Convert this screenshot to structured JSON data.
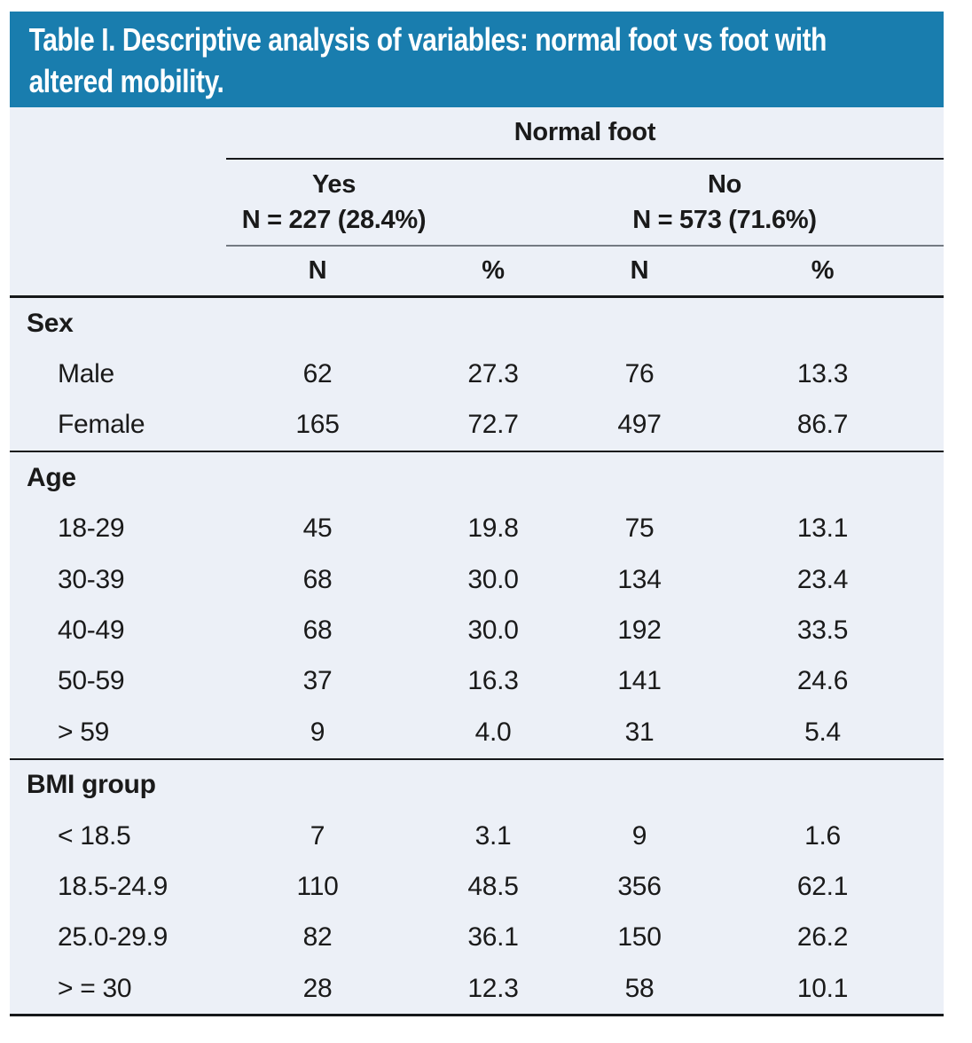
{
  "title": "Table I. Descriptive analysis of variables: normal foot vs foot with altered mobility.",
  "colors": {
    "banner": "#197dae",
    "table_bg": "#ecf0f7",
    "text": "#1a1a1a",
    "title_text": "#ffffff",
    "rule_dark": "#16181a",
    "rule_gray": "#747a82"
  },
  "table": {
    "group_header": "Normal foot",
    "columns": [
      {
        "label": "Yes",
        "sub": "N = 227 (28.4%)"
      },
      {
        "label": "No",
        "sub": "N = 573 (71.6%)"
      }
    ],
    "measure_headers": [
      "N",
      "%",
      "N",
      "%"
    ],
    "sections": [
      {
        "header": "Sex",
        "rows": [
          {
            "label": "Male",
            "values": [
              "62",
              "27.3",
              "76",
              "13.3"
            ]
          },
          {
            "label": "Female",
            "values": [
              "165",
              "72.7",
              "497",
              "86.7"
            ]
          }
        ]
      },
      {
        "header": "Age",
        "rows": [
          {
            "label": "18-29",
            "values": [
              "45",
              "19.8",
              "75",
              "13.1"
            ]
          },
          {
            "label": "30-39",
            "values": [
              "68",
              "30.0",
              "134",
              "23.4"
            ]
          },
          {
            "label": "40-49",
            "values": [
              "68",
              "30.0",
              "192",
              "33.5"
            ]
          },
          {
            "label": "50-59",
            "values": [
              "37",
              "16.3",
              "141",
              "24.6"
            ]
          },
          {
            "label": "> 59",
            "values": [
              "9",
              "4.0",
              "31",
              "5.4"
            ]
          }
        ]
      },
      {
        "header": "BMI group",
        "rows": [
          {
            "label": "< 18.5",
            "values": [
              "7",
              "3.1",
              "9",
              "1.6"
            ]
          },
          {
            "label": "18.5-24.9",
            "values": [
              "110",
              "48.5",
              "356",
              "62.1"
            ]
          },
          {
            "label": "25.0-29.9",
            "values": [
              "82",
              "36.1",
              "150",
              "26.2"
            ]
          },
          {
            "label": "> = 30",
            "values": [
              "28",
              "12.3",
              "58",
              "10.1"
            ]
          }
        ]
      }
    ]
  }
}
